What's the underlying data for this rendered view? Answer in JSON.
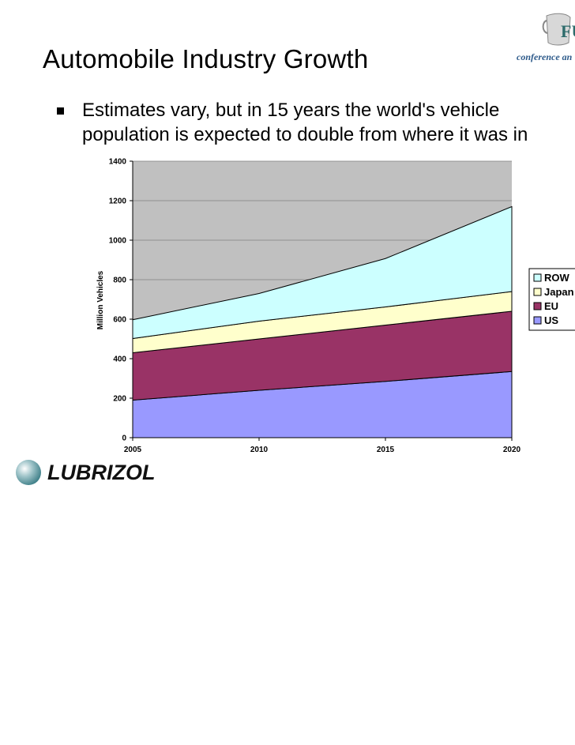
{
  "slide": {
    "title": "Automobile Industry Growth",
    "bullet_lines": [
      "Estimates vary, but in 15 years the world's vehicle",
      "population is expected to double from where it was in"
    ]
  },
  "logos": {
    "top_text": "conference an",
    "top_badge": "FU",
    "bottom_text": "LUBRIZOL"
  },
  "chart_data": {
    "type": "area",
    "stacked": true,
    "x": [
      2005,
      2010,
      2015,
      2020
    ],
    "ylabel": "Million Vehicles",
    "ylim": [
      0,
      1400
    ],
    "yticks": [
      0,
      200,
      400,
      600,
      800,
      1000,
      1200,
      1400
    ],
    "grid": true,
    "legend_position": "right",
    "series": [
      {
        "name": "US",
        "values": [
          190,
          240,
          285,
          335
        ],
        "color": "#9999ff"
      },
      {
        "name": "EU",
        "values": [
          240,
          260,
          285,
          305
        ],
        "color": "#993366"
      },
      {
        "name": "Japan",
        "values": [
          72,
          90,
          92,
          100
        ],
        "color": "#ffffcc"
      },
      {
        "name": "ROW",
        "values": [
          95,
          140,
          245,
          430
        ],
        "color": "#ccffff"
      }
    ],
    "plot_background": "#c0c0c0"
  }
}
